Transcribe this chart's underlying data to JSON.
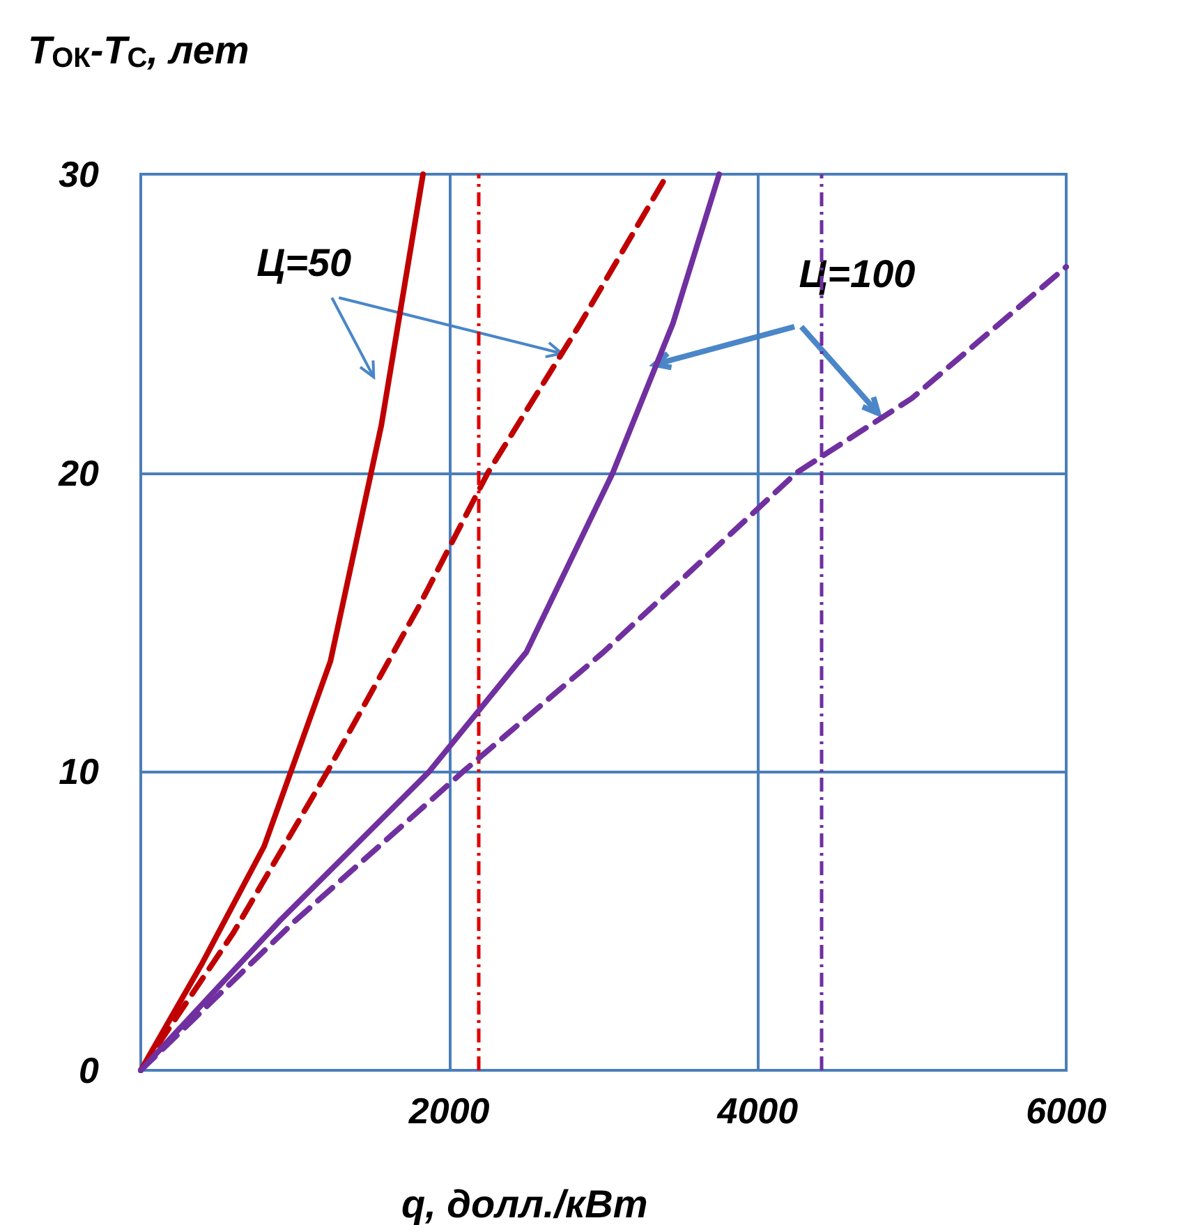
{
  "chart_data": {
    "type": "line",
    "xlabel": "q, долл./кВт",
    "ylabel": "T$_{ОК}$-T$_{С}$, лет",
    "xlim": [
      0,
      6000
    ],
    "ylim": [
      0,
      30
    ],
    "xticks": [
      2000,
      4000,
      6000
    ],
    "yticks": [
      0,
      10,
      20,
      30
    ],
    "grid": true,
    "marker": "none",
    "series": [
      {
        "color": "#c00000",
        "line_style": "solid",
        "x": [
          0,
          400,
          800,
          1230,
          1560,
          1830
        ],
        "values": [
          0,
          3.6,
          7.5,
          13.7,
          21.6,
          30
        ]
      },
      {
        "color": "#c00000",
        "line_style": "dashed",
        "x": [
          0,
          600,
          1210,
          1800,
          2250,
          2850,
          3415
        ],
        "values": [
          0,
          4.6,
          10,
          15.5,
          20,
          25,
          30
        ]
      },
      {
        "color": "#7030a0",
        "line_style": "solid",
        "x": [
          0,
          900,
          1870,
          2500,
          3060,
          3450,
          3750
        ],
        "values": [
          0,
          5,
          10,
          14,
          20,
          25,
          30
        ]
      },
      {
        "color": "#7030a0",
        "line_style": "dashed",
        "x": [
          0,
          1000,
          2090,
          3000,
          4250,
          5000,
          6000
        ],
        "values": [
          0,
          5,
          10,
          14,
          20,
          22.5,
          26.9
        ]
      }
    ],
    "ref_lines": [
      {
        "axis": "x",
        "value": 2190,
        "color": "#e00000",
        "line_style": "dashdot"
      },
      {
        "axis": "x",
        "value": 4410,
        "color": "#7030a0",
        "line_style": "dashdot"
      }
    ],
    "annotations": [
      {
        "text": "Ц=50",
        "x": 2730,
        "y": 24
      },
      {
        "text": "Ц=100",
        "x": 4780,
        "y": 22
      }
    ]
  }
}
